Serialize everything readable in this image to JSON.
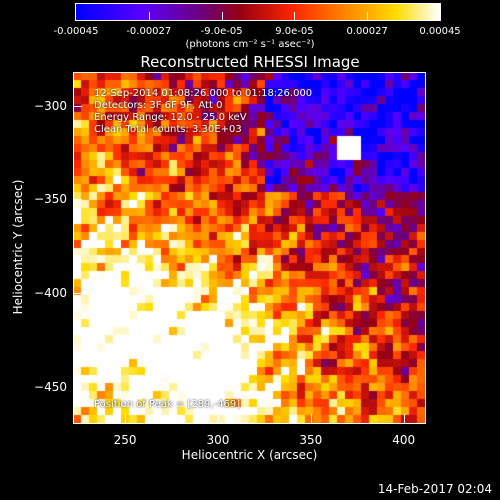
{
  "colorbar": {
    "ticks": [
      "-0.00045",
      "-0.00027",
      "-9.0e-05",
      "9.0e-05",
      "0.00027",
      "0.00045"
    ],
    "units": "(photons cm⁻² s⁻¹ asec⁻²)",
    "colors": [
      "#0000ff",
      "#6600ff",
      "#cc0000",
      "#ff5500",
      "#ffcc00",
      "#ffffff"
    ]
  },
  "title": "Reconstructed RHESSI Image",
  "overlay": {
    "time_range": "12-Sep-2014 01:08:26.000 to 01:18:26.000",
    "detectors": "Detectors: 3F 6F 9F, Att 0",
    "energy": "Energy Range: 12.0 - 25.0 keV",
    "clean": "Clean     Total counts: 3.30E+03",
    "peak": "Position of Peak = [289,-469]"
  },
  "timestamp": "14-Feb-2017 02:04",
  "chart_data": {
    "type": "heatmap",
    "title": "Reconstructed RHESSI Image",
    "xlabel": "Heliocentric X (arcsec)",
    "ylabel": "Heliocentric Y (arcsec)",
    "xlim": [
      222,
      412
    ],
    "ylim": [
      -470,
      -282
    ],
    "xticks": [
      250,
      300,
      350,
      400
    ],
    "yticks": [
      -300,
      -350,
      -400,
      -450
    ],
    "xtick_labels": [
      "250",
      "300",
      "350",
      "400"
    ],
    "ytick_labels": [
      "−300",
      "−350",
      "−400",
      "−450"
    ],
    "color_range": [
      -0.00045,
      0.00045
    ],
    "peak_position": [
      289,
      -469
    ],
    "grid": false
  }
}
